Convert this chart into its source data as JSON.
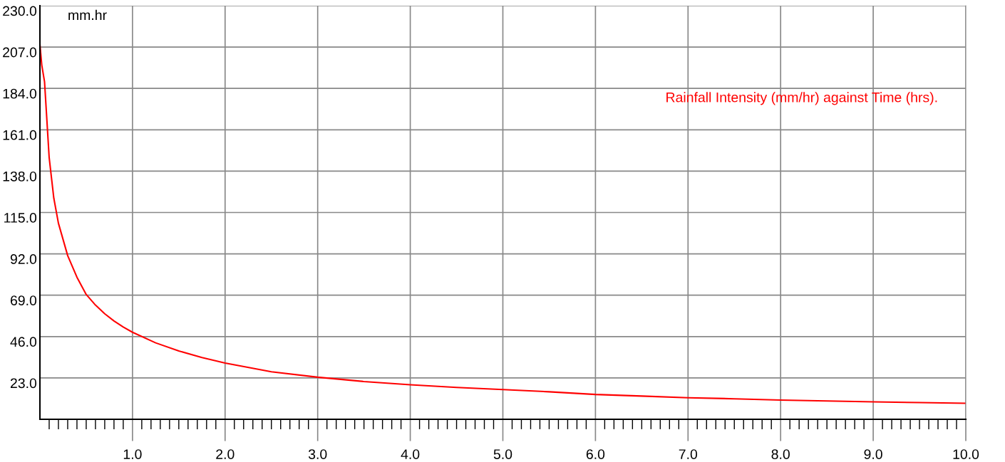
{
  "chart_data": {
    "type": "line",
    "ylabel": "mm.hr",
    "x": [
      0,
      0.02,
      0.05,
      0.1,
      0.15,
      0.2,
      0.3,
      0.4,
      0.5,
      0.6,
      0.7,
      0.8,
      0.9,
      1.0,
      1.25,
      1.5,
      1.75,
      2.0,
      2.5,
      3.0,
      3.5,
      4.0,
      4.5,
      5.0,
      5.5,
      6.0,
      6.5,
      7.0,
      7.5,
      8.0,
      8.5,
      9.0,
      9.5,
      10.0
    ],
    "series": [
      {
        "name": "Rainfall Intensity (mm/hr) against Time (hrs).",
        "color": "#ff0000",
        "values": [
          208.5,
          197,
          187.7,
          145.5,
          123,
          109,
          91,
          79,
          69.4,
          63.5,
          58.7,
          54.7,
          51.3,
          48.4,
          42.5,
          38,
          34.3,
          31.3,
          26.4,
          23.4,
          21,
          19.2,
          17.7,
          16.5,
          15.3,
          13.8,
          12.9,
          12.0,
          11.4,
          10.7,
          10.2,
          9.7,
          9.3,
          8.9
        ]
      }
    ],
    "xlim": [
      0,
      10
    ],
    "xticks": [
      {
        "value": 1,
        "label": "1.0"
      },
      {
        "value": 2,
        "label": "2.0"
      },
      {
        "value": 3,
        "label": "3.0"
      },
      {
        "value": 4,
        "label": "4.0"
      },
      {
        "value": 5,
        "label": "5.0"
      },
      {
        "value": 6,
        "label": "6.0"
      },
      {
        "value": 7,
        "label": "7.0"
      },
      {
        "value": 8,
        "label": "8.0"
      },
      {
        "value": 9,
        "label": "9.0"
      },
      {
        "value": 10,
        "label": "10.0"
      }
    ],
    "ylim": [
      0,
      230
    ],
    "yticks": [
      {
        "value": 23,
        "label": "23.0"
      },
      {
        "value": 46,
        "label": "46.0"
      },
      {
        "value": 69,
        "label": "69.0"
      },
      {
        "value": 92,
        "label": "92.0"
      },
      {
        "value": 115,
        "label": "115.0"
      },
      {
        "value": 138,
        "label": "138.0"
      },
      {
        "value": 161,
        "label": "161.0"
      },
      {
        "value": 184,
        "label": "184.0"
      },
      {
        "value": 207,
        "label": "207.0"
      },
      {
        "value": 230,
        "label": "230.0"
      }
    ],
    "grid": true,
    "legend": "top right",
    "marker": "none",
    "line_style": "solid"
  }
}
